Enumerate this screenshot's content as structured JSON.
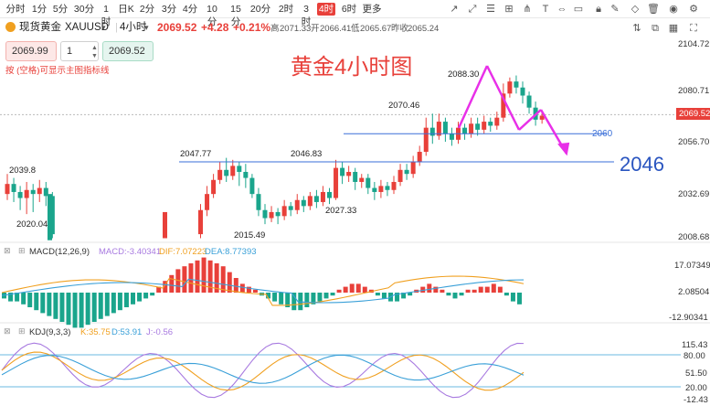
{
  "toolbar": {
    "timeframes": [
      "分时",
      "1分",
      "5分",
      "30分",
      "1时",
      "日K",
      "2分",
      "3分",
      "4分",
      "10分",
      "15分",
      "20分",
      "2时",
      "3时",
      "4时",
      "6时",
      "更多"
    ],
    "active_timeframe": "4时"
  },
  "symbol": {
    "name": "现货黄金",
    "code": "XAUUSD",
    "period": "4小时",
    "price": "2069.52",
    "change": "+4.28",
    "change_pct": "+0.21%",
    "high_label": "高",
    "high": "2071.33",
    "open_label": "开",
    "open": "2066.41",
    "low_label": "低",
    "low": "2065.67",
    "prev_label": "昨收",
    "prev": "2065.24"
  },
  "order": {
    "sell_price": "2069.99",
    "qty": "1",
    "buy_price": "2069.52",
    "hint": "按 (空格)可显示主图指标线"
  },
  "annotation": {
    "title": "黄金4小时图",
    "level_small": "2060",
    "level_big": "2046"
  },
  "main_chart": {
    "y_ticks": [
      "2104.72",
      "2080.71",
      "2056.70",
      "2032.69",
      "2008.68"
    ],
    "current_price_tag": "2069.52",
    "peak_labels": [
      "2039.8",
      "2020.04",
      "2047.77",
      "2015.49",
      "2046.83",
      "2027.33",
      "2070.46",
      "2088.30"
    ]
  },
  "macd": {
    "label": "MACD(12,26,9)",
    "macd_value": "MACD:-3.40341",
    "dif_value": "DIF:7.07223",
    "dea_value": "DEA:8.77393",
    "y_ticks": [
      "17.07349",
      "2.08504",
      "-12.90341"
    ]
  },
  "kdj": {
    "label": "KDJ(9,3,3)",
    "k_value": "K:35.75",
    "d_value": "D:53.91",
    "j_value": "J:-0.56",
    "y_ticks": [
      "115.43",
      "80.00",
      "51.50",
      "20.00",
      "-12.43"
    ]
  },
  "colors": {
    "up": "#e8403a",
    "down": "#1aa58c",
    "accent": "#e8403a",
    "arrow": "#e830e8",
    "level_line": "#3a6fd8"
  },
  "chart_data": [
    {
      "type": "candlestick",
      "title": "黄金4小时图",
      "ylim": [
        2008.68,
        2104.72
      ],
      "annotations": [
        "2060",
        "2046"
      ]
    },
    {
      "type": "bar",
      "title": "MACD(12,26,9)",
      "ylim": [
        -12.90341,
        17.07349
      ]
    },
    {
      "type": "line",
      "title": "KDJ(9,3,3)",
      "ylim": [
        -12.43,
        115.43
      ]
    }
  ]
}
